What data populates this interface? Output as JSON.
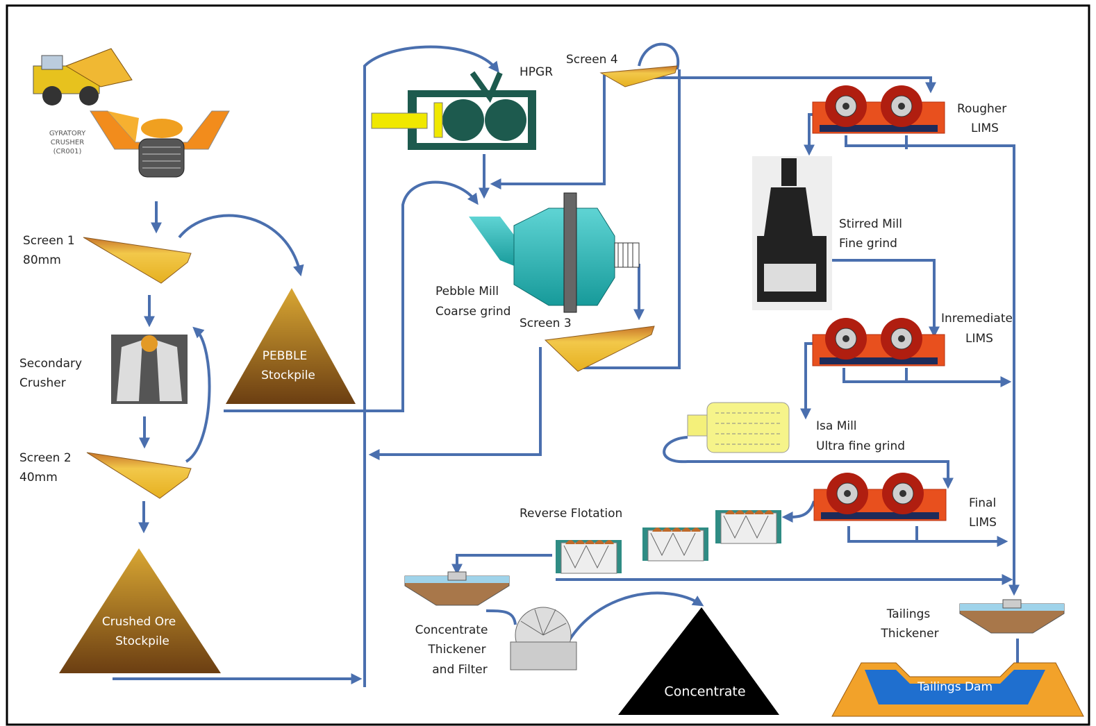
{
  "gyratory_crusher": [
    "GYRATORY",
    "CRUSHER",
    "(CR001)"
  ],
  "screen_1": [
    "Screen 1",
    "80mm"
  ],
  "secondary_crusher": [
    "Secondary",
    "Crusher"
  ],
  "screen_2": [
    "Screen 2",
    "40mm"
  ],
  "crushed_ore_stockpile": [
    "Crushed Ore",
    "Stockpile"
  ],
  "pebble_stockpile": [
    "PEBBLE",
    "Stockpile"
  ],
  "hpgr": "HPGR",
  "screen_4": "Screen 4",
  "pebble_mill": [
    "Pebble Mill",
    "Coarse grind"
  ],
  "screen_3": "Screen 3",
  "rougher_lims": [
    "Rougher",
    "LIMS"
  ],
  "stirred_mill": [
    "Stirred Mill",
    "Fine grind"
  ],
  "intermediate_lims": [
    "Inremediate",
    "LIMS"
  ],
  "isa_mill": [
    "Isa Mill",
    "Ultra fine grind"
  ],
  "final_lims": [
    "Final",
    "LIMS"
  ],
  "reverse_flotation": "Reverse Flotation",
  "concentrate_thickener": [
    "Concentrate",
    "Thickener",
    "and Filter"
  ],
  "concentrate": "Concentrate",
  "tailings_thickener": [
    "Tailings",
    "Thickener"
  ],
  "tailings_dam": "Tailings Dam"
}
